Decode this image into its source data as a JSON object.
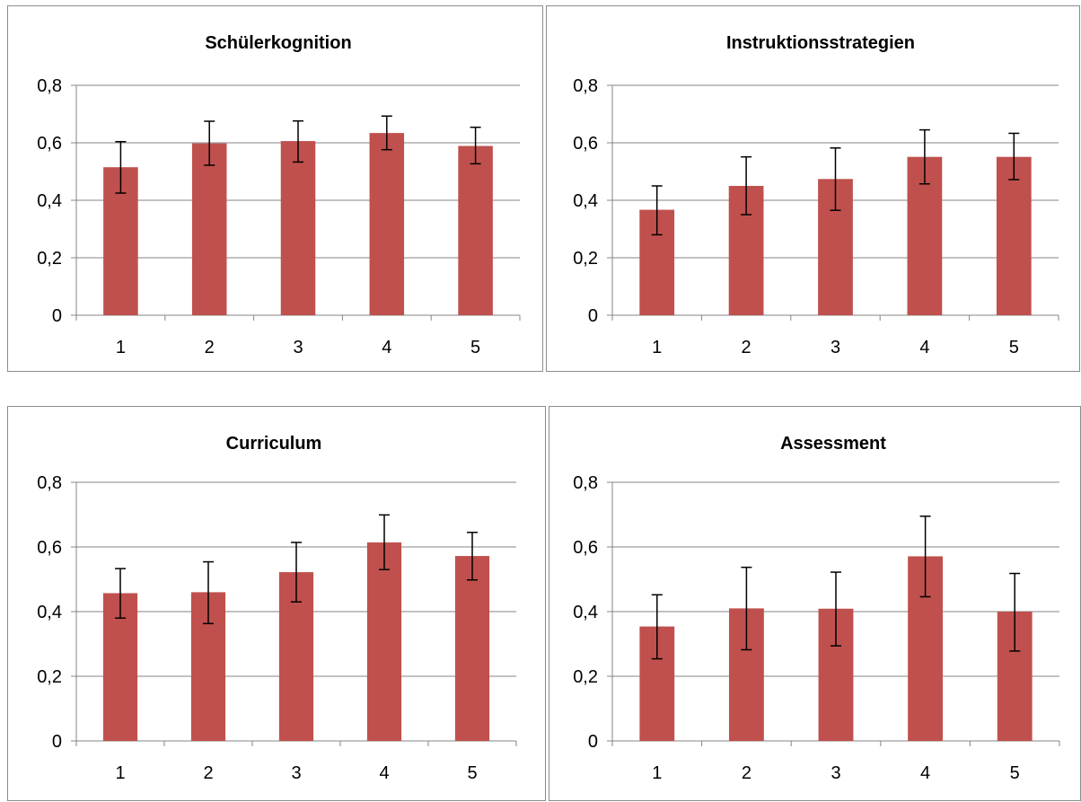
{
  "chart_data": [
    {
      "type": "bar",
      "title": "Schülerkognition",
      "categories": [
        "1",
        "2",
        "3",
        "4",
        "5"
      ],
      "y_tick_labels": [
        "0",
        "0,2",
        "0,4",
        "0,6",
        "0,8"
      ],
      "ylim": [
        0,
        0.8
      ],
      "grid": true,
      "values": [
        0.515,
        0.598,
        0.606,
        0.634,
        0.589
      ],
      "error_low": [
        0.425,
        0.522,
        0.533,
        0.576,
        0.527
      ],
      "error_high": [
        0.604,
        0.675,
        0.676,
        0.693,
        0.654
      ],
      "bar_color": "#c0504d"
    },
    {
      "type": "bar",
      "title": "Instruktionsstrategien",
      "categories": [
        "1",
        "2",
        "3",
        "4",
        "5"
      ],
      "y_tick_labels": [
        "0",
        "0,2",
        "0,4",
        "0,6",
        "0,8"
      ],
      "ylim": [
        0,
        0.8
      ],
      "grid": true,
      "values": [
        0.367,
        0.45,
        0.474,
        0.551,
        0.551
      ],
      "error_low": [
        0.28,
        0.35,
        0.365,
        0.457,
        0.472
      ],
      "error_high": [
        0.45,
        0.551,
        0.582,
        0.645,
        0.633
      ],
      "bar_color": "#c0504d"
    },
    {
      "type": "bar",
      "title": "Curriculum",
      "categories": [
        "1",
        "2",
        "3",
        "4",
        "5"
      ],
      "y_tick_labels": [
        "0",
        "0,2",
        "0,4",
        "0,6",
        "0,8"
      ],
      "ylim": [
        0,
        0.8
      ],
      "grid": true,
      "values": [
        0.457,
        0.46,
        0.522,
        0.614,
        0.572
      ],
      "error_low": [
        0.38,
        0.363,
        0.43,
        0.53,
        0.498
      ],
      "error_high": [
        0.533,
        0.554,
        0.614,
        0.699,
        0.645
      ],
      "bar_color": "#c0504d"
    },
    {
      "type": "bar",
      "title": "Assessment",
      "categories": [
        "1",
        "2",
        "3",
        "4",
        "5"
      ],
      "y_tick_labels": [
        "0",
        "0,2",
        "0,4",
        "0,6",
        "0,8"
      ],
      "ylim": [
        0,
        0.8
      ],
      "grid": true,
      "values": [
        0.354,
        0.41,
        0.409,
        0.571,
        0.4
      ],
      "error_low": [
        0.254,
        0.282,
        0.294,
        0.446,
        0.278
      ],
      "error_high": [
        0.452,
        0.537,
        0.522,
        0.695,
        0.518
      ],
      "bar_color": "#c0504d"
    }
  ]
}
